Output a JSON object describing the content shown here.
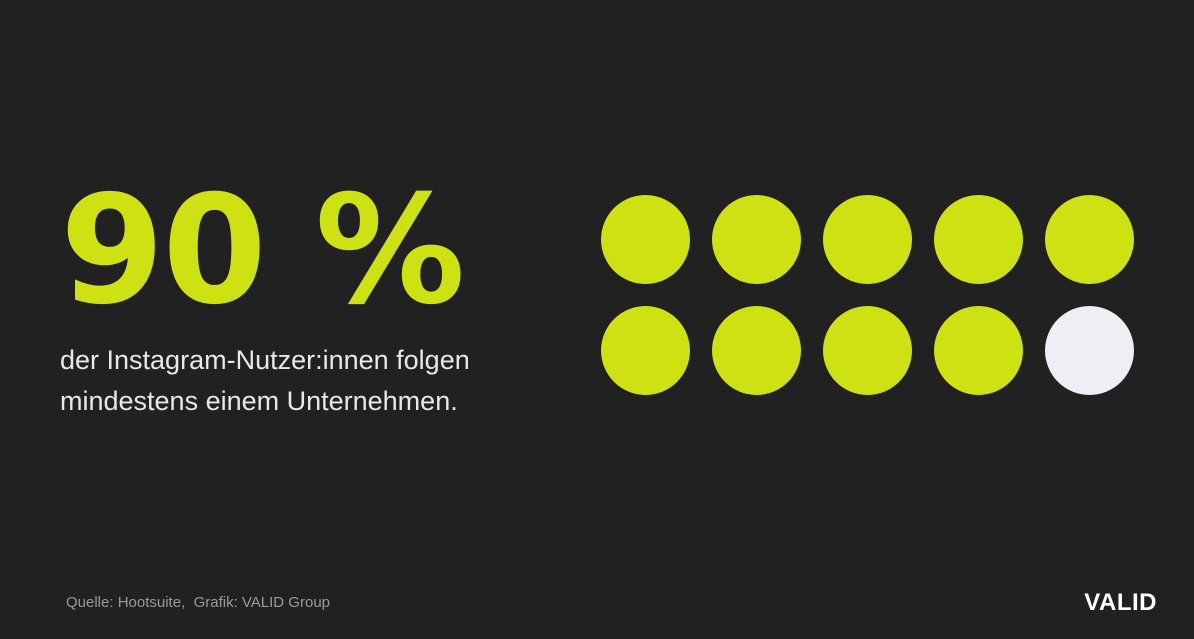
{
  "headline": {
    "value_text": "90 %",
    "color": "#CEE112"
  },
  "description": {
    "line1": "der Instagram-Nutzer:innen folgen",
    "line2": "mindestens einem Unternehmen."
  },
  "footer": {
    "source": "Quelle: Hootsuite,  Grafik: VALID Group",
    "brand": "VALID"
  },
  "chart_data": {
    "type": "dot-matrix",
    "total": 10,
    "filled": 9,
    "percent": 90,
    "rows": 2,
    "columns": 5,
    "filled_color": "#CEE112",
    "empty_color": "#EEEFF5"
  }
}
